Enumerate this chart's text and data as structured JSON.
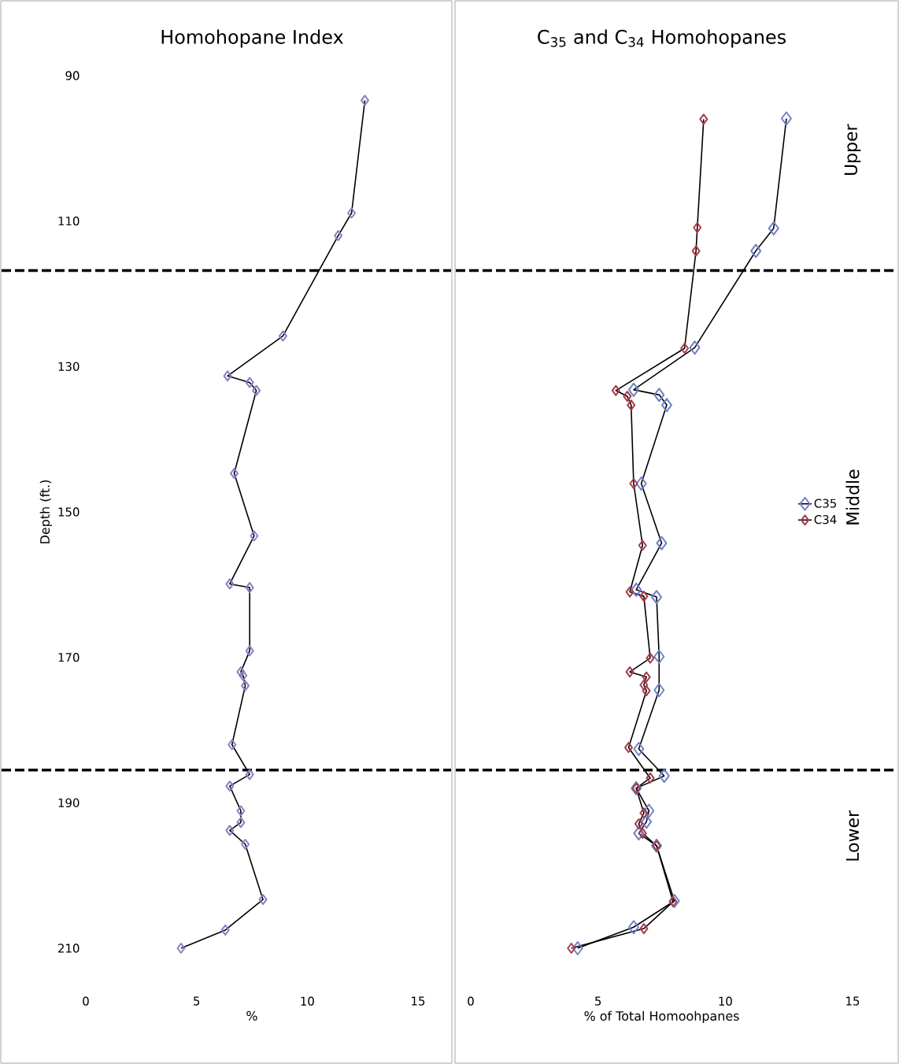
{
  "chart_data": [
    {
      "type": "line",
      "title": "Homohopane Index",
      "xlabel": "%",
      "ylabel": "Depth (ft.)",
      "xlim": [
        0,
        15
      ],
      "xticks": [
        0,
        5,
        10,
        15
      ],
      "ylim": [
        210,
        90
      ],
      "yticks": [
        90,
        110,
        130,
        150,
        170,
        190,
        210
      ],
      "marker": "diamond",
      "line_style": "solid",
      "series": [
        {
          "color": "#8e7cc3",
          "x": [
            12.6,
            12.0,
            11.4,
            8.9,
            6.4,
            7.4,
            7.7,
            6.7,
            7.6,
            6.5,
            7.4,
            7.4,
            7.0,
            7.1,
            7.2,
            6.6,
            7.4,
            6.5,
            7.0,
            7.0,
            6.5,
            7.2,
            8.0,
            6.3,
            4.3
          ],
          "values": [
            93.4,
            108.9,
            112.0,
            125.8,
            131.3,
            132.2,
            133.3,
            144.7,
            153.3,
            159.9,
            160.4,
            169.1,
            172.0,
            172.5,
            173.9,
            182.0,
            186.1,
            187.7,
            191.1,
            192.7,
            193.8,
            195.7,
            203.3,
            207.5,
            210.0
          ]
        }
      ],
      "ref_lines": [
        {
          "axis": "y",
          "value": 116.8,
          "line_style": "dashed"
        },
        {
          "axis": "y",
          "value": 185.5,
          "line_style": "dashed"
        }
      ]
    },
    {
      "type": "line",
      "title": "C$_{35}$ and C$_{34}$ Homohopanes",
      "xlabel": "% of Total Homoohpanes",
      "xlim": [
        0,
        15
      ],
      "xticks": [
        0,
        5,
        10,
        15
      ],
      "ylim": [
        210,
        90
      ],
      "yticks": [
        90,
        110,
        130,
        150,
        170,
        190,
        210
      ],
      "tick_labels": "x",
      "marker": "diamond",
      "line_style": "solid",
      "legend": "right",
      "series": [
        {
          "name": "C35",
          "color": "#6f80c8",
          "x": [
            12.4,
            11.9,
            11.2,
            8.8,
            6.4,
            7.4,
            7.7,
            6.7,
            7.5,
            6.5,
            7.3,
            7.4,
            7.4,
            6.6,
            7.6,
            6.5,
            7.0,
            6.9,
            6.6,
            7.3,
            8.0,
            6.4,
            4.2
          ],
          "values": [
            95.9,
            111.0,
            114.1,
            127.4,
            133.2,
            133.9,
            135.3,
            146.1,
            154.3,
            160.7,
            161.7,
            169.9,
            174.5,
            182.6,
            186.3,
            188.0,
            191.1,
            192.6,
            194.2,
            195.9,
            203.5,
            207.1,
            210.0
          ]
        },
        {
          "name": "C34",
          "color": "#a83a4a",
          "x": [
            9.15,
            8.9,
            8.85,
            8.4,
            5.7,
            6.15,
            6.3,
            6.4,
            6.75,
            6.25,
            6.8,
            7.05,
            6.25,
            6.9,
            6.8,
            6.9,
            6.2,
            7.05,
            6.5,
            6.8,
            6.6,
            6.75,
            7.3,
            7.95,
            6.8,
            3.95
          ],
          "values": [
            96.0,
            110.9,
            114.1,
            127.5,
            133.3,
            134.1,
            135.3,
            146.1,
            154.6,
            161.0,
            161.6,
            170.1,
            172.0,
            172.7,
            173.8,
            174.6,
            182.4,
            186.6,
            188.0,
            191.4,
            192.9,
            194.2,
            195.9,
            203.6,
            207.3,
            210.0
          ]
        }
      ],
      "ref_lines": [
        {
          "axis": "y",
          "value": 116.8,
          "line_style": "dashed"
        },
        {
          "axis": "y",
          "value": 185.5,
          "line_style": "dashed"
        }
      ],
      "annotations": [
        "Upper",
        "Middle",
        "Lower"
      ]
    }
  ]
}
